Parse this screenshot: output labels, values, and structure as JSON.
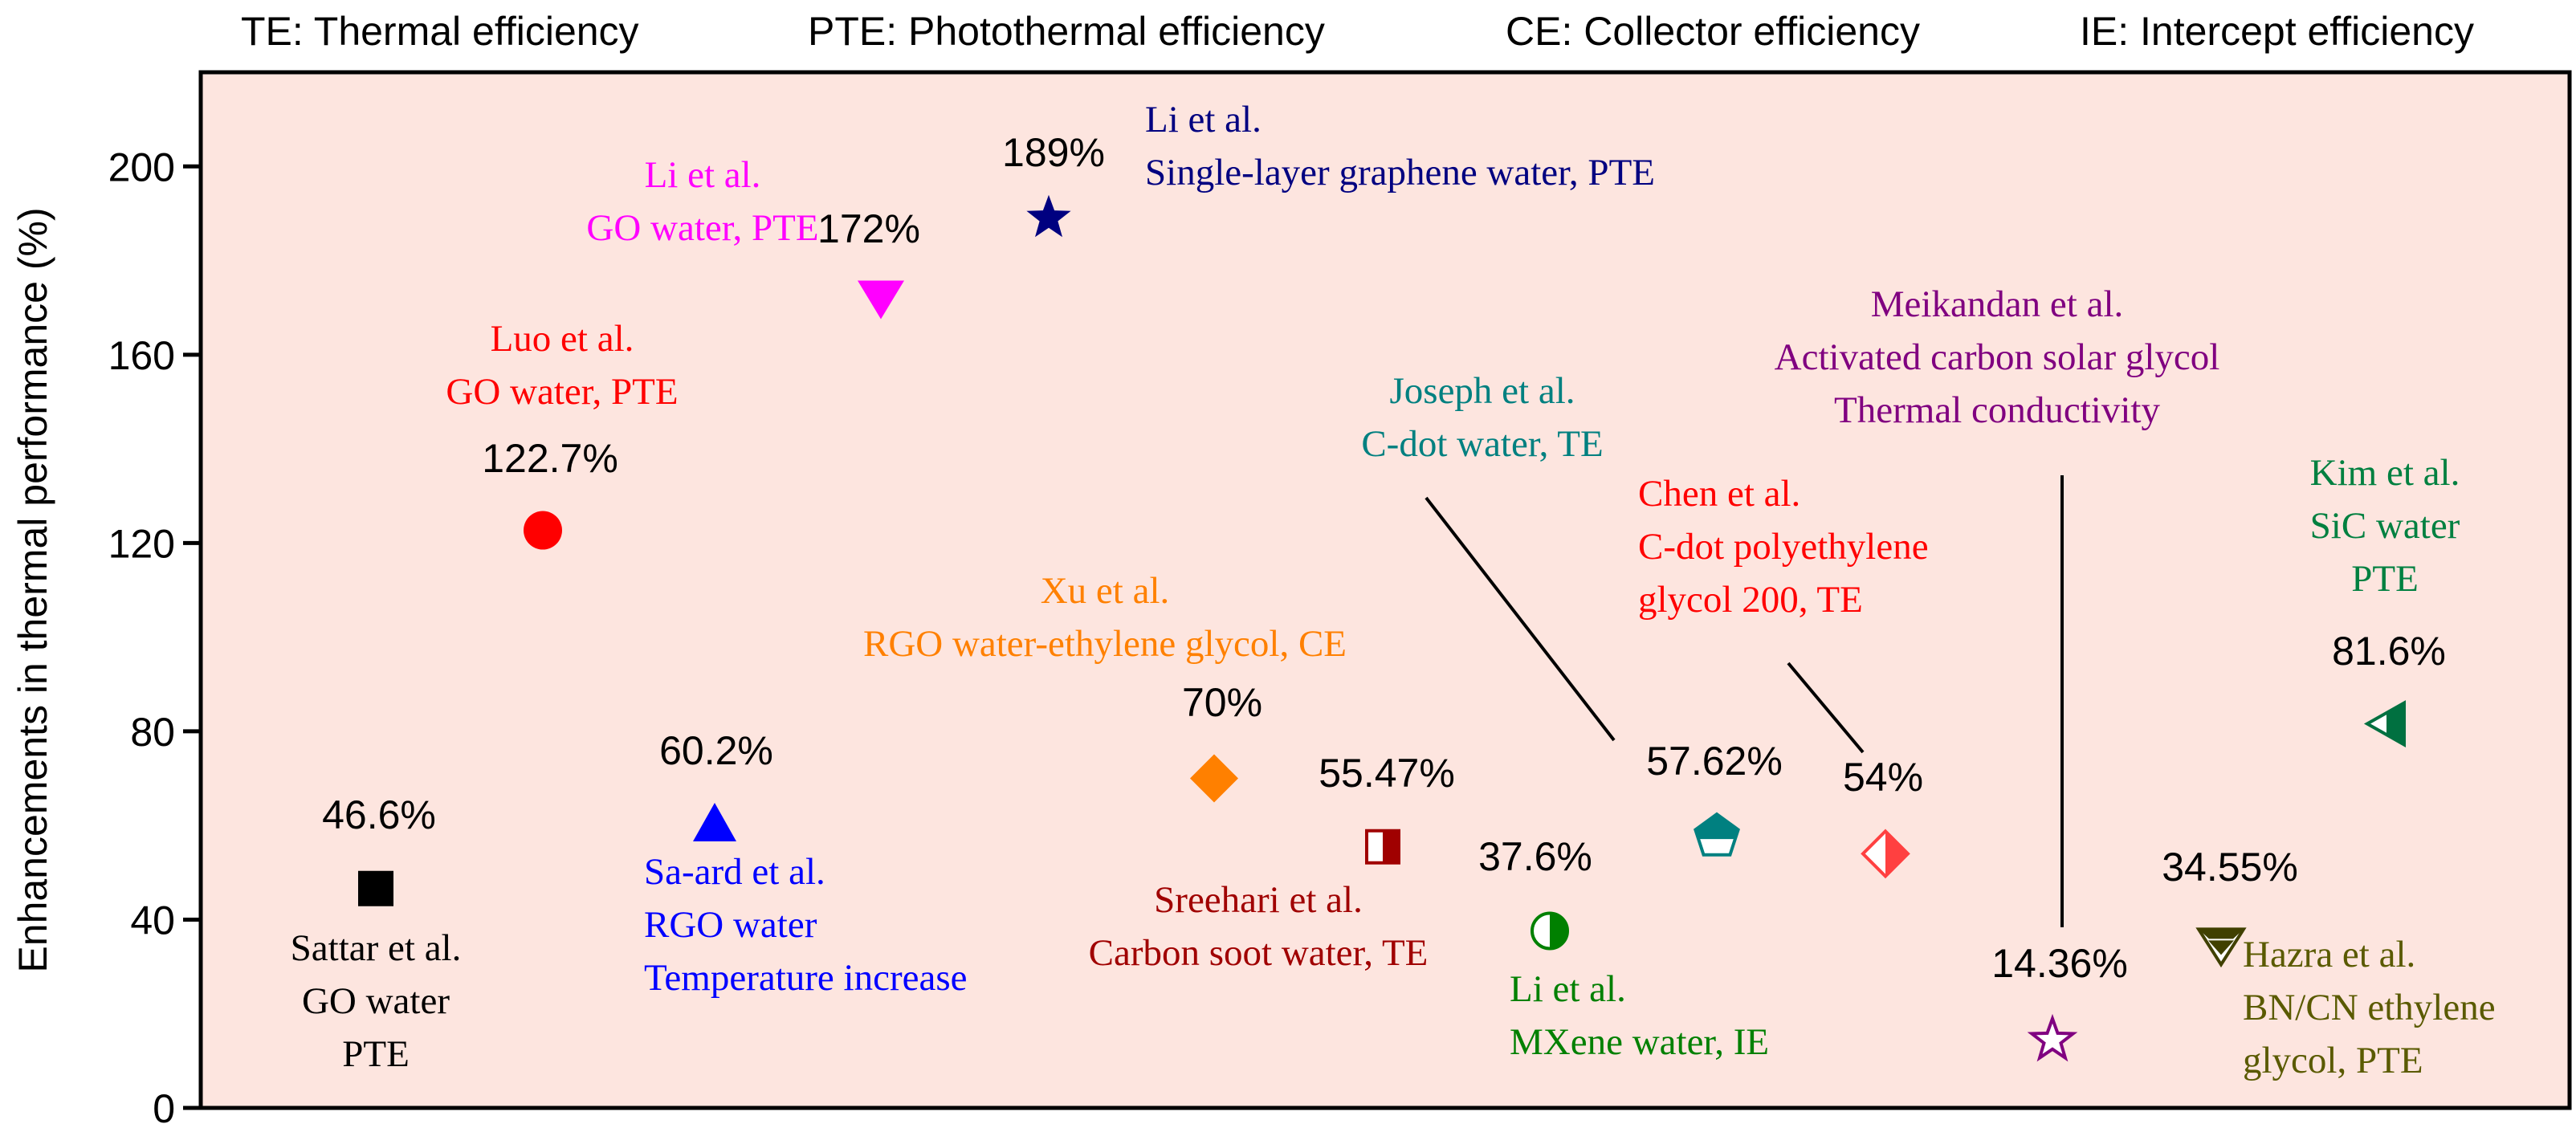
{
  "legend": [
    "TE: Thermal efficiency",
    "PTE: Photothermal efficiency",
    "CE: Collector efficiency",
    "IE: Intercept efficiency"
  ],
  "chart_data": {
    "type": "scatter",
    "title": "",
    "xlabel": "",
    "ylabel": "Enhancements in thermal performance (%)",
    "ylim": [
      0,
      220
    ],
    "yticks": [
      0,
      40,
      80,
      120,
      160,
      200
    ],
    "grid": false,
    "background": "#fde5df",
    "points": [
      {
        "index": 1,
        "value": 46.6,
        "label": "46.6%",
        "marker": "square",
        "color": "#000000",
        "annotation": [
          "Sattar et al.",
          "GO water",
          "PTE"
        ],
        "annotation_color": "#000000"
      },
      {
        "index": 2,
        "value": 122.7,
        "label": "122.7%",
        "marker": "circle",
        "color": "#ff0000",
        "annotation": [
          "Luo et al.",
          "GO water, PTE"
        ],
        "annotation_color": "#ff0000"
      },
      {
        "index": 3,
        "value": 60.2,
        "label": "60.2%",
        "marker": "triangle-up",
        "color": "#0000ff",
        "annotation": [
          "Sa-ard et al.",
          "RGO water",
          "Temperature increase"
        ],
        "annotation_color": "#0000ff"
      },
      {
        "index": 4,
        "value": 172,
        "label": "172%",
        "marker": "triangle-down",
        "color": "#ff00ff",
        "annotation": [
          "Li et al.",
          "GO water, PTE"
        ],
        "annotation_color": "#ff00ff"
      },
      {
        "index": 5,
        "value": 189,
        "label": "189%",
        "marker": "star",
        "color": "#000080",
        "annotation": [
          "Li et al.",
          "Single-layer graphene water, PTE"
        ],
        "annotation_color": "#000080"
      },
      {
        "index": 6,
        "value": 70,
        "label": "70%",
        "marker": "diamond",
        "color": "#ff8000",
        "annotation": [
          "Xu et al.",
          "RGO water-ethylene glycol, CE"
        ],
        "annotation_color": "#ff8000"
      },
      {
        "index": 7,
        "value": 55.47,
        "label": "55.47%",
        "marker": "square-half-right",
        "color": "#a00000",
        "annotation": [
          "Sreehari et al.",
          "Carbon soot water, TE"
        ],
        "annotation_color": "#a00000"
      },
      {
        "index": 8,
        "value": 37.6,
        "label": "37.6%",
        "marker": "circle-half-right",
        "color": "#008000",
        "annotation": [
          "Li et al.",
          "MXene water, IE"
        ],
        "annotation_color": "#008000"
      },
      {
        "index": 9,
        "value": 57.62,
        "label": "57.62%",
        "marker": "pentagon-half-top",
        "color": "#008080",
        "annotation": [
          "Joseph et al.",
          "C-dot water, TE"
        ],
        "annotation_color": "#008080"
      },
      {
        "index": 10,
        "value": 54,
        "label": "54%",
        "marker": "diamond-half-right",
        "color": "#ff4040",
        "annotation": [
          "Chen et al.",
          "C-dot polyethylene",
          "glycol 200, TE"
        ],
        "annotation_color": "#ff0000"
      },
      {
        "index": 11,
        "value": 14.36,
        "label": "14.36%",
        "marker": "star-open",
        "color": "#800080",
        "annotation": [
          "Meikandan et al.",
          "Activated carbon solar glycol",
          "Thermal conductivity"
        ],
        "annotation_color": "#800080"
      },
      {
        "index": 12,
        "value": 34.55,
        "label": "34.55%",
        "marker": "triangle-down-half",
        "color": "#404000",
        "annotation": [
          "Hazra et al.",
          "BN/CN ethylene",
          "glycol, PTE"
        ],
        "annotation_color": "#5a5a00"
      },
      {
        "index": 13,
        "value": 81.6,
        "label": "81.6%",
        "marker": "triangle-left-half",
        "color": "#007040",
        "annotation": [
          "Kim et al.",
          "SiC water",
          "PTE"
        ],
        "annotation_color": "#008040"
      }
    ]
  }
}
